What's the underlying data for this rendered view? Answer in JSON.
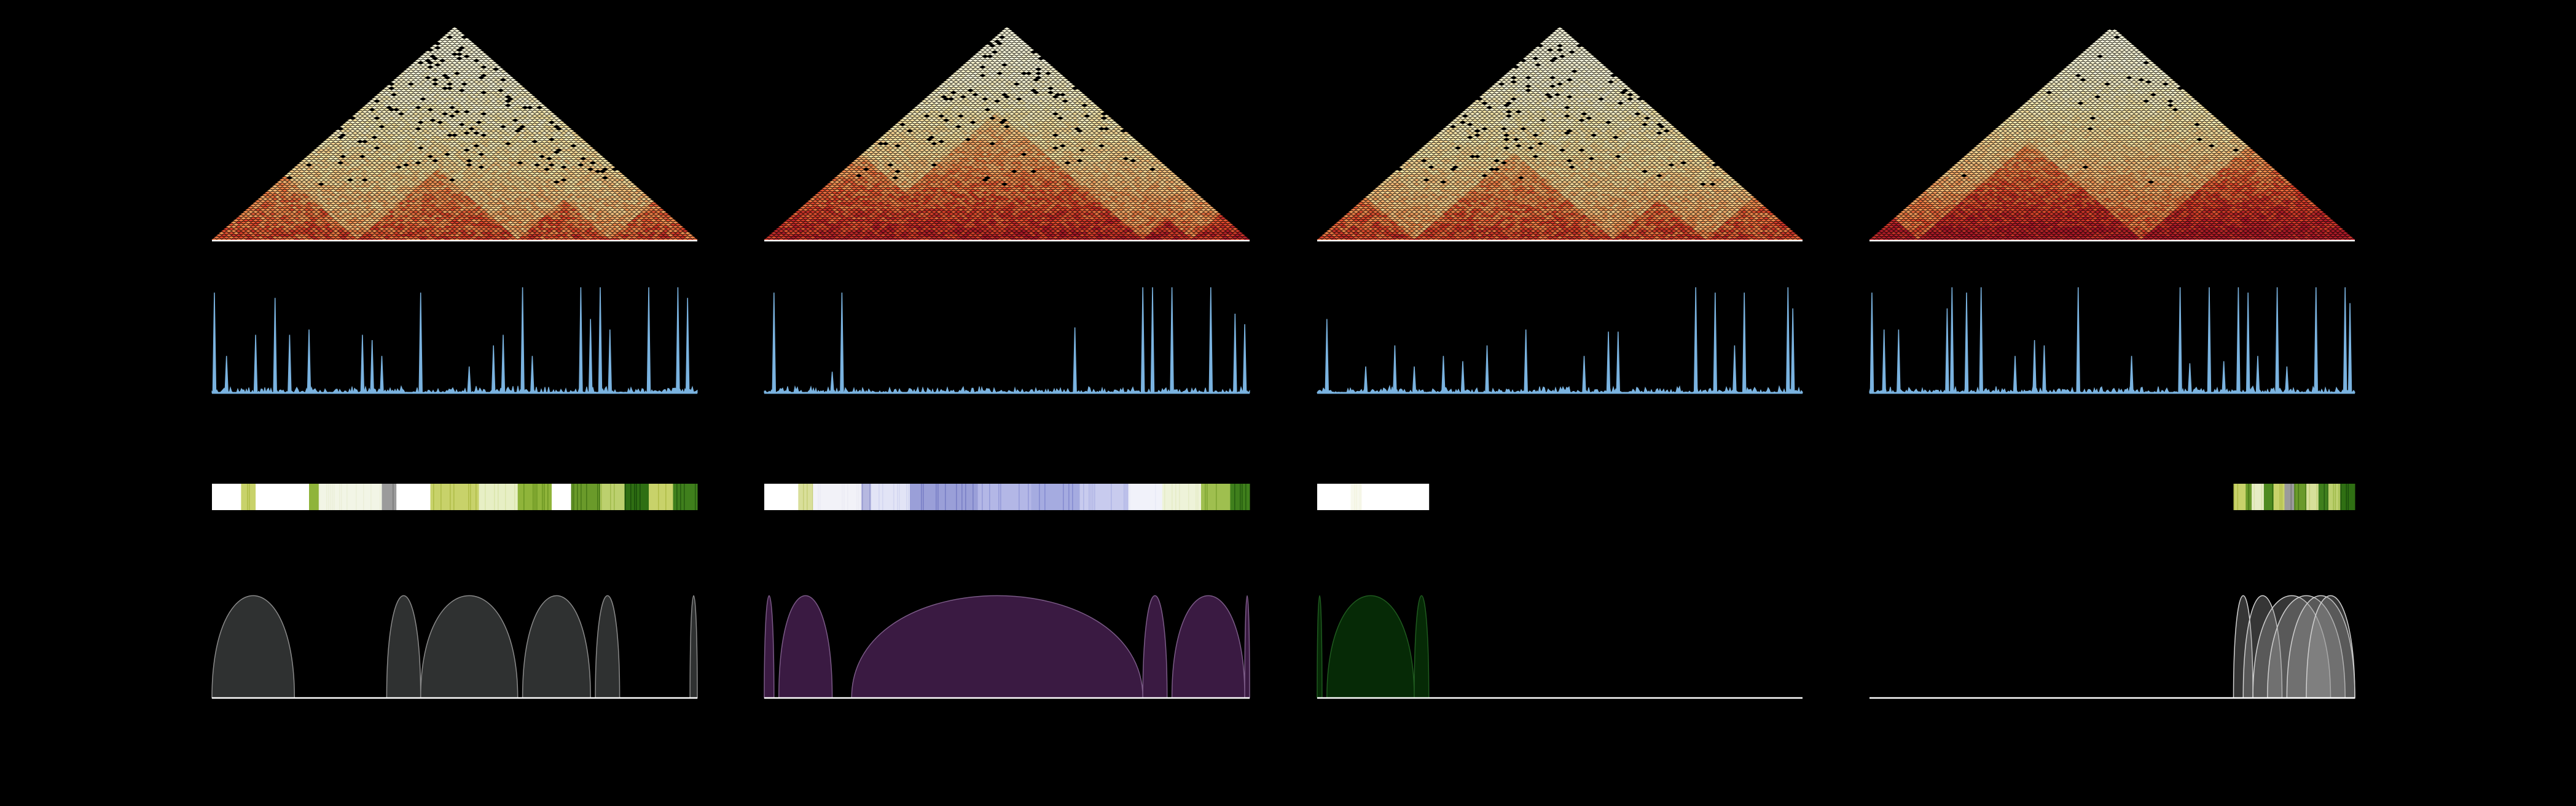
{
  "figure": {
    "background": "#000000",
    "baseline_color": "#ffffff"
  },
  "panels": [
    {
      "name": "panel-1",
      "heatmap": {
        "seed": 11,
        "bright": 0.78,
        "noise": 0.12,
        "dropout": 0.05,
        "tads": [
          [
            0.0,
            0.14
          ],
          [
            0.14,
            0.3
          ],
          [
            0.3,
            0.46
          ],
          [
            0.46,
            0.63
          ],
          [
            0.63,
            0.82
          ],
          [
            0.82,
            1.0
          ],
          [
            0.3,
            0.63
          ],
          [
            0.0,
            0.3
          ]
        ]
      },
      "signal": {
        "color": "#7ab3e0",
        "peaks": [
          [
            0.005,
            0.95
          ],
          [
            0.03,
            0.35
          ],
          [
            0.09,
            0.55
          ],
          [
            0.13,
            0.9
          ],
          [
            0.16,
            0.55
          ],
          [
            0.2,
            0.6
          ],
          [
            0.31,
            0.55
          ],
          [
            0.33,
            0.5
          ],
          [
            0.35,
            0.35
          ],
          [
            0.43,
            0.95
          ],
          [
            0.53,
            0.25
          ],
          [
            0.58,
            0.45
          ],
          [
            0.6,
            0.55
          ],
          [
            0.64,
            1.0
          ],
          [
            0.66,
            0.35
          ],
          [
            0.76,
            1.0
          ],
          [
            0.78,
            0.7
          ],
          [
            0.8,
            1.0
          ],
          [
            0.82,
            0.6
          ],
          [
            0.9,
            1.0
          ],
          [
            0.96,
            1.0
          ],
          [
            0.98,
            0.9
          ]
        ]
      },
      "state_bar": {
        "range": [
          0.0,
          1.0
        ],
        "segments": [
          [
            0.0,
            0.06,
            "#ffffff"
          ],
          [
            0.06,
            0.09,
            "#c8d26a"
          ],
          [
            0.09,
            0.2,
            "#ffffff"
          ],
          [
            0.2,
            0.22,
            "#8fb43a"
          ],
          [
            0.22,
            0.35,
            "#f2f5e6"
          ],
          [
            0.35,
            0.38,
            "#9b9b9b"
          ],
          [
            0.38,
            0.45,
            "#ffffff"
          ],
          [
            0.45,
            0.55,
            "#c8d26a"
          ],
          [
            0.55,
            0.63,
            "#e7efc5"
          ],
          [
            0.63,
            0.7,
            "#8fb43a"
          ],
          [
            0.7,
            0.74,
            "#ffffff"
          ],
          [
            0.74,
            0.8,
            "#6a9a2a"
          ],
          [
            0.8,
            0.85,
            "#bcd06e"
          ],
          [
            0.85,
            0.9,
            "#2f6f13"
          ],
          [
            0.9,
            0.95,
            "#c8d26a"
          ],
          [
            0.95,
            1.0,
            "#3f7f1c"
          ]
        ]
      },
      "arcs": {
        "fill": "#2f3131",
        "stroke": "#8a8a8a",
        "items": [
          [
            0.0,
            0.17
          ],
          [
            0.36,
            0.43
          ],
          [
            0.43,
            0.63
          ],
          [
            0.64,
            0.78
          ],
          [
            0.79,
            0.84
          ],
          [
            0.985,
            1.0
          ]
        ]
      }
    },
    {
      "name": "panel-2",
      "heatmap": {
        "seed": 23,
        "bright": 0.6,
        "noise": 0.1,
        "dropout": 0.03,
        "tads": [
          [
            0.0,
            0.18
          ],
          [
            0.18,
            0.78
          ],
          [
            0.78,
            0.88
          ],
          [
            0.88,
            1.0
          ],
          [
            0.0,
            0.4
          ]
        ]
      },
      "signal": {
        "color": "#7ab3e0",
        "peaks": [
          [
            0.02,
            0.95
          ],
          [
            0.14,
            0.2
          ],
          [
            0.16,
            0.95
          ],
          [
            0.64,
            0.62
          ],
          [
            0.78,
            1.0
          ],
          [
            0.8,
            1.0
          ],
          [
            0.84,
            1.0
          ],
          [
            0.92,
            1.0
          ],
          [
            0.97,
            0.75
          ],
          [
            0.99,
            0.65
          ]
        ]
      },
      "state_bar": {
        "range": [
          0.0,
          1.0
        ],
        "segments": [
          [
            0.0,
            0.07,
            "#ffffff"
          ],
          [
            0.07,
            0.1,
            "#d9df9a"
          ],
          [
            0.1,
            0.2,
            "#f2f2f8"
          ],
          [
            0.2,
            0.22,
            "#b6b8e0"
          ],
          [
            0.22,
            0.3,
            "#e2e4f6"
          ],
          [
            0.3,
            0.44,
            "#9a9fd8"
          ],
          [
            0.44,
            0.55,
            "#b3b7e6"
          ],
          [
            0.55,
            0.65,
            "#a5abe0"
          ],
          [
            0.65,
            0.75,
            "#c8cbee"
          ],
          [
            0.75,
            0.82,
            "#f1f2fa"
          ],
          [
            0.82,
            0.9,
            "#eef3d9"
          ],
          [
            0.9,
            0.96,
            "#9fbf4f"
          ],
          [
            0.96,
            1.0,
            "#3f7f1c"
          ]
        ]
      },
      "arcs": {
        "fill": "#3a1a42",
        "stroke": "#7a5a86",
        "items": [
          [
            0.0,
            0.02
          ],
          [
            0.03,
            0.14
          ],
          [
            0.18,
            0.78
          ],
          [
            0.78,
            0.83
          ],
          [
            0.84,
            0.99
          ],
          [
            0.99,
            1.0
          ]
        ]
      }
    },
    {
      "name": "panel-3",
      "heatmap": {
        "seed": 37,
        "bright": 0.74,
        "noise": 0.11,
        "dropout": 0.035,
        "tads": [
          [
            0.0,
            0.2
          ],
          [
            0.2,
            0.42
          ],
          [
            0.42,
            0.61
          ],
          [
            0.61,
            0.8
          ],
          [
            0.8,
            1.0
          ],
          [
            0.2,
            0.61
          ]
        ]
      },
      "signal": {
        "color": "#7ab3e0",
        "peaks": [
          [
            0.02,
            0.7
          ],
          [
            0.1,
            0.25
          ],
          [
            0.16,
            0.45
          ],
          [
            0.2,
            0.25
          ],
          [
            0.26,
            0.35
          ],
          [
            0.3,
            0.3
          ],
          [
            0.35,
            0.45
          ],
          [
            0.43,
            0.6
          ],
          [
            0.55,
            0.35
          ],
          [
            0.6,
            0.58
          ],
          [
            0.62,
            0.58
          ],
          [
            0.78,
            1.0
          ],
          [
            0.82,
            0.95
          ],
          [
            0.86,
            0.45
          ],
          [
            0.88,
            0.95
          ],
          [
            0.97,
            1.0
          ],
          [
            0.98,
            0.8
          ]
        ]
      },
      "state_bar": {
        "range": [
          0.0,
          0.23
        ],
        "segments": [
          [
            0.0,
            0.3,
            "#ffffff"
          ],
          [
            0.3,
            0.4,
            "#f7f8ec"
          ],
          [
            0.4,
            1.0,
            "#ffffff"
          ]
        ]
      },
      "arcs": {
        "fill": "#062a06",
        "stroke": "#1f5a1f",
        "items": [
          [
            0.0,
            0.01
          ],
          [
            0.02,
            0.2
          ],
          [
            0.2,
            0.23
          ]
        ]
      }
    },
    {
      "name": "panel-4",
      "heatmap": {
        "seed": 53,
        "bright": 0.5,
        "noise": 0.09,
        "dropout": 0.015,
        "tads": [
          [
            0.0,
            0.1
          ],
          [
            0.1,
            0.36
          ],
          [
            0.36,
            0.56
          ],
          [
            0.56,
            0.82
          ],
          [
            0.82,
            0.9
          ],
          [
            0.9,
            1.0
          ],
          [
            0.1,
            0.56
          ],
          [
            0.56,
            1.0
          ]
        ]
      },
      "signal": {
        "color": "#7ab3e0",
        "peaks": [
          [
            0.005,
            0.95
          ],
          [
            0.03,
            0.6
          ],
          [
            0.06,
            0.6
          ],
          [
            0.16,
            0.8
          ],
          [
            0.17,
            1.0
          ],
          [
            0.2,
            0.95
          ],
          [
            0.23,
            1.0
          ],
          [
            0.3,
            0.35
          ],
          [
            0.34,
            0.5
          ],
          [
            0.36,
            0.45
          ],
          [
            0.43,
            1.0
          ],
          [
            0.54,
            0.35
          ],
          [
            0.64,
            1.0
          ],
          [
            0.66,
            0.28
          ],
          [
            0.7,
            1.0
          ],
          [
            0.73,
            0.3
          ],
          [
            0.76,
            1.0
          ],
          [
            0.78,
            0.95
          ],
          [
            0.8,
            0.35
          ],
          [
            0.84,
            1.0
          ],
          [
            0.86,
            0.25
          ],
          [
            0.92,
            1.0
          ],
          [
            0.98,
            1.0
          ],
          [
            0.99,
            0.85
          ]
        ]
      },
      "state_bar": {
        "range": [
          0.75,
          1.0
        ],
        "segments": [
          [
            0.0,
            0.1,
            "#c8d26a"
          ],
          [
            0.1,
            0.15,
            "#6a9a2a"
          ],
          [
            0.15,
            0.25,
            "#e6ecc4"
          ],
          [
            0.25,
            0.33,
            "#4e8a20"
          ],
          [
            0.33,
            0.42,
            "#c8d26a"
          ],
          [
            0.42,
            0.5,
            "#9b9b9b"
          ],
          [
            0.5,
            0.6,
            "#6a9a2a"
          ],
          [
            0.6,
            0.7,
            "#d7e09a"
          ],
          [
            0.7,
            0.78,
            "#3f7f1c"
          ],
          [
            0.78,
            0.88,
            "#bcd06e"
          ],
          [
            0.88,
            1.0,
            "#2f6f13"
          ]
        ]
      },
      "arcs": {
        "fill": "#9a9a9a",
        "stroke": "#d0d0d0",
        "opacity": 0.35,
        "items": [
          [
            0.75,
            0.79
          ],
          [
            0.77,
            0.85
          ],
          [
            0.79,
            0.95
          ],
          [
            0.82,
            0.98
          ],
          [
            0.86,
            1.0
          ],
          [
            0.9,
            1.0
          ]
        ]
      }
    }
  ]
}
